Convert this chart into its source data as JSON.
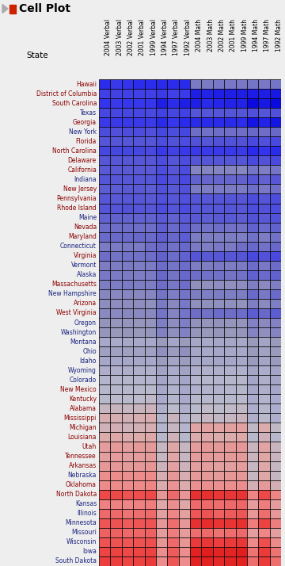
{
  "title": "Cell Plot",
  "columns": [
    "2004 Verbal",
    "2003 Verbal",
    "2002 Verbal",
    "2001 Verbal",
    "1999 Verbal",
    "1994 Verbal",
    "1997 Verbal",
    "1992 Verbal",
    "2004 Math",
    "2003 Math",
    "2002 Math",
    "2001 Math",
    "1999 Math",
    "1994 Math",
    "1997 Math",
    "1992 Math"
  ],
  "states": [
    "Hawaii",
    "District of Columbia",
    "South Carolina",
    "Texas",
    "Georgia",
    "New York",
    "Florida",
    "North Carolina",
    "Delaware",
    "California",
    "Indiana",
    "New Jersey",
    "Pennsylvania",
    "Rhode Island",
    "Maine",
    "Nevada",
    "Maryland",
    "Connecticut",
    "Virginia",
    "Vermont",
    "Alaska",
    "Massachusetts",
    "New Hampshire",
    "Arizona",
    "West Virginia",
    "Oregon",
    "Washington",
    "Montana",
    "Ohio",
    "Idaho",
    "Wyoming",
    "Colorado",
    "New Mexico",
    "Kentucky",
    "Alabama",
    "Mississippi",
    "Michigan",
    "Louisiana",
    "Utah",
    "Tennessee",
    "Arkansas",
    "Nebraska",
    "Oklahoma",
    "North Dakota",
    "Kansas",
    "Illinois",
    "Minnesota",
    "Missouri",
    "Wisconsin",
    "Iowa",
    "South Dakota"
  ],
  "state_colors": [
    "#8B0000",
    "#8B0000",
    "#8B0000",
    "#1a237e",
    "#8B0000",
    "#1a237e",
    "#8B0000",
    "#8B0000",
    "#8B0000",
    "#8B0000",
    "#1a237e",
    "#8B0000",
    "#8B0000",
    "#8B0000",
    "#1a237e",
    "#8B0000",
    "#8B0000",
    "#1a237e",
    "#8B0000",
    "#1a237e",
    "#1a237e",
    "#8B0000",
    "#1a237e",
    "#8B0000",
    "#8B0000",
    "#1a237e",
    "#1a237e",
    "#1a237e",
    "#1a237e",
    "#1a237e",
    "#1a237e",
    "#1a237e",
    "#8B0000",
    "#8B0000",
    "#8B0000",
    "#8B0000",
    "#8B0000",
    "#8B0000",
    "#8B0000",
    "#8B0000",
    "#8B0000",
    "#1a237e",
    "#8B0000",
    "#8B0000",
    "#1a237e",
    "#1a237e",
    "#1a237e",
    "#1a237e",
    "#1a237e",
    "#1a237e",
    "#1a237e"
  ],
  "raw_data": {
    "Hawaii": [
      483,
      487,
      485,
      483,
      483,
      482,
      483,
      482,
      515,
      515,
      514,
      514,
      514,
      513,
      514,
      513
    ],
    "District of Columbia": [
      490,
      491,
      490,
      490,
      490,
      488,
      490,
      488,
      479,
      480,
      479,
      479,
      479,
      478,
      479,
      477
    ],
    "South Carolina": [
      485,
      487,
      486,
      486,
      486,
      479,
      483,
      479,
      479,
      482,
      481,
      480,
      480,
      473,
      477,
      473
    ],
    "Texas": [
      493,
      493,
      493,
      493,
      494,
      491,
      493,
      491,
      499,
      499,
      499,
      499,
      499,
      497,
      499,
      497
    ],
    "Georgia": [
      487,
      487,
      487,
      487,
      488,
      482,
      486,
      482,
      482,
      482,
      482,
      482,
      483,
      476,
      480,
      476
    ],
    "New York": [
      496,
      497,
      496,
      496,
      497,
      493,
      496,
      493,
      510,
      511,
      510,
      510,
      510,
      507,
      510,
      507
    ],
    "Florida": [
      499,
      499,
      499,
      499,
      499,
      495,
      498,
      495,
      498,
      499,
      498,
      498,
      498,
      494,
      497,
      494
    ],
    "North Carolina": [
      493,
      493,
      493,
      493,
      494,
      487,
      491,
      487,
      487,
      488,
      487,
      487,
      488,
      482,
      485,
      482
    ],
    "Delaware": [
      500,
      500,
      500,
      500,
      500,
      495,
      499,
      495,
      499,
      499,
      499,
      499,
      499,
      494,
      498,
      494
    ],
    "California": [
      501,
      501,
      501,
      501,
      501,
      495,
      500,
      495,
      519,
      519,
      519,
      519,
      520,
      513,
      517,
      513
    ],
    "Indiana": [
      499,
      500,
      500,
      500,
      499,
      494,
      498,
      494,
      505,
      506,
      506,
      506,
      505,
      500,
      504,
      500
    ],
    "New Jersey": [
      502,
      502,
      501,
      501,
      502,
      497,
      501,
      497,
      515,
      516,
      515,
      515,
      515,
      510,
      514,
      510
    ],
    "Pennsylvania": [
      500,
      501,
      500,
      500,
      501,
      497,
      500,
      497,
      499,
      500,
      499,
      499,
      500,
      495,
      499,
      495
    ],
    "Rhode Island": [
      499,
      499,
      498,
      499,
      500,
      496,
      499,
      495,
      499,
      499,
      499,
      499,
      500,
      495,
      498,
      495
    ],
    "Maine": [
      504,
      505,
      504,
      504,
      505,
      501,
      504,
      501,
      501,
      502,
      501,
      501,
      502,
      498,
      501,
      498
    ],
    "Nevada": [
      509,
      510,
      509,
      510,
      510,
      503,
      508,
      503,
      510,
      511,
      510,
      511,
      511,
      504,
      508,
      504
    ],
    "Maryland": [
      508,
      508,
      508,
      507,
      508,
      503,
      507,
      502,
      516,
      517,
      517,
      516,
      517,
      511,
      516,
      511
    ],
    "Connecticut": [
      515,
      515,
      514,
      515,
      510,
      507,
      511,
      507,
      515,
      516,
      514,
      515,
      510,
      507,
      511,
      507
    ],
    "Virginia": [
      510,
      512,
      511,
      511,
      510,
      505,
      509,
      505,
      499,
      501,
      500,
      500,
      499,
      494,
      498,
      494
    ],
    "Vermont": [
      516,
      516,
      515,
      516,
      515,
      509,
      513,
      509,
      516,
      516,
      515,
      516,
      515,
      509,
      514,
      509
    ],
    "Alaska": [
      514,
      515,
      515,
      516,
      515,
      507,
      512,
      507,
      510,
      511,
      511,
      512,
      511,
      504,
      508,
      504
    ],
    "Massachusetts": [
      516,
      516,
      515,
      516,
      516,
      510,
      514,
      510,
      524,
      524,
      523,
      524,
      523,
      517,
      522,
      517
    ],
    "New Hampshire": [
      520,
      521,
      520,
      521,
      520,
      512,
      517,
      512,
      516,
      517,
      516,
      517,
      516,
      508,
      514,
      508
    ],
    "Arizona": [
      523,
      523,
      523,
      523,
      524,
      515,
      521,
      514,
      524,
      524,
      524,
      524,
      525,
      517,
      522,
      517
    ],
    "West Virginia": [
      522,
      522,
      521,
      522,
      521,
      513,
      519,
      513,
      510,
      511,
      509,
      510,
      509,
      502,
      507,
      502
    ],
    "Oregon": [
      526,
      527,
      526,
      527,
      526,
      517,
      523,
      517,
      525,
      526,
      525,
      526,
      526,
      518,
      522,
      518
    ],
    "Washington": [
      527,
      528,
      527,
      528,
      527,
      518,
      524,
      518,
      527,
      528,
      527,
      528,
      527,
      519,
      524,
      519
    ],
    "Montana": [
      541,
      542,
      540,
      541,
      541,
      530,
      538,
      530,
      539,
      541,
      539,
      539,
      540,
      529,
      537,
      529
    ],
    "Ohio": [
      534,
      535,
      534,
      535,
      535,
      524,
      531,
      524,
      539,
      540,
      539,
      540,
      540,
      529,
      536,
      529
    ],
    "Idaho": [
      540,
      540,
      539,
      540,
      541,
      531,
      537,
      531,
      539,
      539,
      538,
      539,
      540,
      530,
      537,
      530
    ],
    "Wyoming": [
      545,
      546,
      545,
      546,
      547,
      536,
      543,
      536,
      545,
      547,
      546,
      547,
      547,
      537,
      544,
      537
    ],
    "Colorado": [
      549,
      549,
      549,
      549,
      549,
      538,
      545,
      538,
      549,
      550,
      549,
      550,
      550,
      538,
      546,
      538
    ],
    "New Mexico": [
      551,
      551,
      551,
      552,
      553,
      541,
      548,
      541,
      547,
      548,
      548,
      549,
      550,
      539,
      546,
      539
    ],
    "Kentucky": [
      553,
      554,
      553,
      554,
      555,
      543,
      550,
      543,
      551,
      552,
      551,
      552,
      553,
      542,
      549,
      542
    ],
    "Alabama": [
      557,
      558,
      557,
      558,
      559,
      546,
      554,
      546,
      553,
      555,
      554,
      555,
      556,
      544,
      551,
      544
    ],
    "Mississippi": [
      562,
      562,
      561,
      562,
      563,
      549,
      558,
      549,
      555,
      557,
      556,
      557,
      558,
      545,
      553,
      545
    ],
    "Michigan": [
      560,
      561,
      560,
      561,
      562,
      549,
      557,
      549,
      567,
      568,
      567,
      568,
      568,
      556,
      564,
      556
    ],
    "Louisiana": [
      564,
      565,
      563,
      564,
      565,
      551,
      560,
      551,
      564,
      565,
      563,
      564,
      565,
      552,
      560,
      552
    ],
    "Utah": [
      570,
      571,
      570,
      571,
      571,
      557,
      566,
      557,
      570,
      572,
      571,
      572,
      572,
      558,
      567,
      558
    ],
    "Tennessee": [
      569,
      570,
      569,
      570,
      571,
      557,
      566,
      557,
      570,
      571,
      570,
      571,
      571,
      558,
      566,
      558
    ],
    "Arkansas": [
      572,
      572,
      571,
      572,
      573,
      559,
      568,
      559,
      569,
      570,
      568,
      569,
      570,
      557,
      565,
      557
    ],
    "Nebraska": [
      576,
      577,
      576,
      577,
      578,
      562,
      572,
      562,
      571,
      572,
      571,
      572,
      572,
      557,
      566,
      557
    ],
    "Oklahoma": [
      578,
      578,
      577,
      578,
      579,
      563,
      574,
      563,
      575,
      576,
      575,
      576,
      577,
      561,
      571,
      561
    ],
    "North Dakota": [
      592,
      592,
      590,
      591,
      592,
      573,
      585,
      573,
      599,
      599,
      597,
      597,
      598,
      579,
      592,
      579
    ],
    "Kansas": [
      580,
      580,
      579,
      580,
      581,
      565,
      576,
      565,
      585,
      585,
      584,
      585,
      586,
      570,
      581,
      570
    ],
    "Illinois": [
      585,
      585,
      583,
      584,
      585,
      568,
      579,
      568,
      589,
      590,
      587,
      588,
      589,
      572,
      584,
      572
    ],
    "Minnesota": [
      589,
      590,
      588,
      589,
      590,
      572,
      584,
      572,
      599,
      600,
      598,
      598,
      599,
      581,
      594,
      581
    ],
    "Missouri": [
      587,
      587,
      585,
      586,
      587,
      570,
      581,
      570,
      584,
      585,
      583,
      584,
      585,
      569,
      579,
      569
    ],
    "Wisconsin": [
      590,
      590,
      589,
      590,
      591,
      573,
      585,
      573,
      596,
      597,
      595,
      596,
      597,
      578,
      591,
      578
    ],
    "Iowa": [
      593,
      594,
      592,
      593,
      594,
      576,
      588,
      576,
      603,
      604,
      602,
      602,
      604,
      583,
      596,
      583
    ],
    "South Dakota": [
      595,
      595,
      593,
      594,
      596,
      577,
      589,
      577,
      603,
      603,
      601,
      602,
      603,
      584,
      596,
      584
    ]
  },
  "vmin": 470,
  "vmax": 615,
  "fig_width": 3.6,
  "fig_height": 7.14,
  "dpi": 100,
  "bg_color": "#eeeeee",
  "title_bg": "#e0e0e0",
  "title_text": "Cell Plot",
  "title_fontsize": 10,
  "state_fontsize": 5.5,
  "col_fontsize": 5.5,
  "state_label_x": "State",
  "state_label_fontsize": 7.5
}
